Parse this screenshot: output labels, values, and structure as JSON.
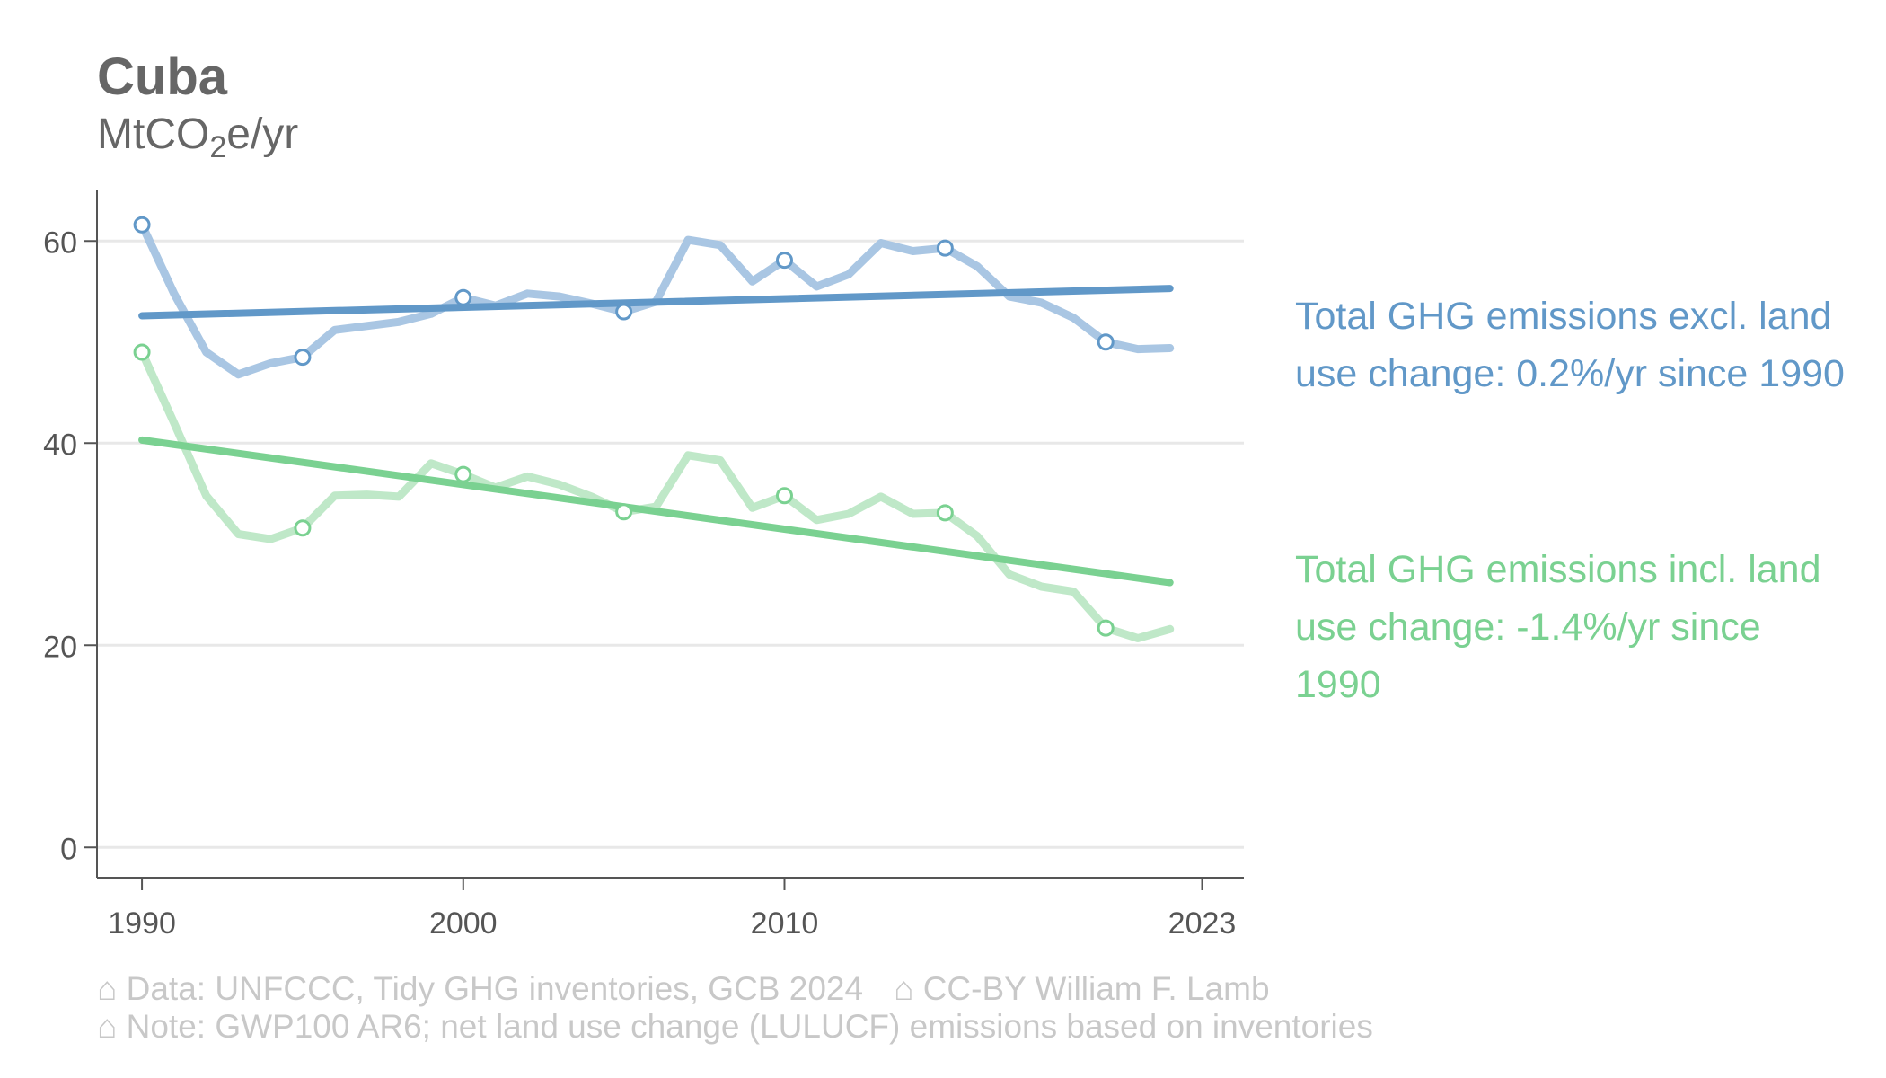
{
  "header": {
    "title": "Cuba",
    "unit_prefix": "MtCO",
    "unit_sub": "2",
    "unit_suffix": "e/yr"
  },
  "footer": {
    "line1_a": "⌂ Data: UNFCCC, Tidy GHG inventories, GCB 2024",
    "line1_b": "⌂ CC-BY William F. Lamb",
    "line2": "⌂ Note: GWP100 AR6; net land use change (LULUCF) emissions based on inventories"
  },
  "annotations": {
    "excl": "Total GHG emissions excl. land use change: 0.2%/yr since 1990",
    "incl": "Total GHG emissions incl. land use change: -1.4%/yr since 1990"
  },
  "chart_data": {
    "type": "line",
    "title": "Cuba",
    "ylabel": "MtCO2e/yr",
    "xlim": [
      1988.6,
      2024.3
    ],
    "ylim": [
      -3,
      65
    ],
    "x_ticks": [
      1990,
      2000,
      2010,
      2023
    ],
    "y_ticks": [
      0,
      20,
      40,
      60
    ],
    "grid": "horizontal",
    "x": [
      1990,
      1991,
      1992,
      1993,
      1994,
      1995,
      1996,
      1997,
      1998,
      1999,
      2000,
      2001,
      2002,
      2003,
      2004,
      2005,
      2006,
      2007,
      2008,
      2009,
      2010,
      2011,
      2012,
      2013,
      2014,
      2015,
      2016,
      2017,
      2018,
      2019,
      2020,
      2021,
      2022
    ],
    "series": [
      {
        "name": "Total GHG emissions excl. land use change",
        "color": "#a9c6e3",
        "values": [
          61.6,
          54.8,
          49.0,
          46.8,
          47.9,
          48.5,
          51.2,
          51.6,
          52.0,
          52.8,
          54.4,
          53.6,
          54.8,
          54.5,
          53.8,
          53.0,
          54.0,
          60.1,
          59.6,
          56.0,
          58.1,
          55.5,
          56.7,
          59.8,
          59.0,
          59.3,
          57.5,
          54.5,
          53.9,
          52.4,
          50.0,
          49.3,
          49.4
        ],
        "markers_at": [
          1990,
          1995,
          2000,
          2005,
          2010,
          2015,
          2020
        ],
        "trend": {
          "color": "#6198c8",
          "from": [
            1990,
            52.6
          ],
          "to": [
            2022,
            55.3
          ]
        }
      },
      {
        "name": "Total GHG emissions incl. land use change",
        "color": "#bfe8c8",
        "values": [
          49.0,
          42.0,
          34.8,
          31.0,
          30.5,
          31.6,
          34.8,
          34.9,
          34.7,
          38.0,
          36.9,
          35.6,
          36.7,
          35.9,
          34.7,
          33.2,
          33.7,
          38.8,
          38.3,
          33.6,
          34.8,
          32.4,
          33.0,
          34.7,
          33.0,
          33.1,
          30.8,
          27.0,
          25.8,
          25.3,
          21.7,
          20.7,
          21.6
        ],
        "markers_at": [
          1990,
          1995,
          2000,
          2005,
          2010,
          2015,
          2020
        ],
        "trend": {
          "color": "#7ad191",
          "from": [
            1990,
            40.3
          ],
          "to": [
            2022,
            26.2
          ]
        }
      }
    ]
  },
  "colors": {
    "excl_label": "#6198c8",
    "incl_label": "#7ad191",
    "grid": "#e8e8e8",
    "axis": "#555555",
    "tick_text": "#555555"
  }
}
